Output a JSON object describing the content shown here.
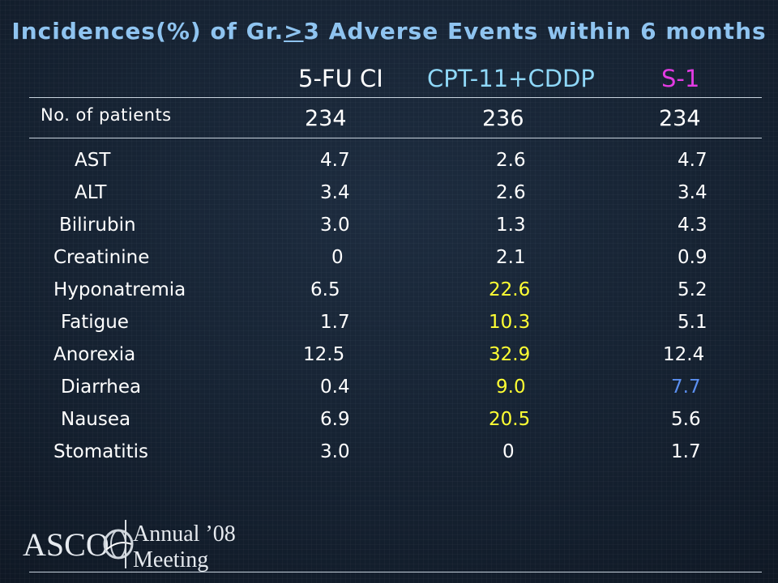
{
  "slide": {
    "title_pre": "Incidences(%) of Gr.",
    "title_ge": ">",
    "title_post": "3 Adverse Events within 6 months",
    "columns": [
      {
        "label": "5-FU CI",
        "color": "#ffffff"
      },
      {
        "label": "CPT-11+CDDP",
        "color": "#8fd8f8"
      },
      {
        "label": "S-1",
        "color": "#e23be2"
      }
    ],
    "patients_label": "No. of patients",
    "patients": [
      "234",
      "236",
      "234"
    ],
    "highlight_yellow": "#ffff33",
    "highlight_blue": "#5b8ff0",
    "rows": [
      {
        "name": "AST",
        "v1": "4.7",
        "v2": "2.6",
        "v3": "4.7"
      },
      {
        "name": "ALT",
        "v1": "3.4",
        "v2": "2.6",
        "v3": "3.4"
      },
      {
        "name": "Bilirubin",
        "v1": "3.0",
        "v2": "1.3",
        "v3": "4.3"
      },
      {
        "name": "Creatinine",
        "v1": "0",
        "v2": "2.1",
        "v3": "0.9"
      },
      {
        "name": "Hyponatremia",
        "v1": "6.5",
        "v2": "22.6",
        "v3": "5.2"
      },
      {
        "name": "Fatigue",
        "v1": "1.7",
        "v2": "10.3",
        "v3": "5.1"
      },
      {
        "name": "Anorexia",
        "v1": "12.5",
        "v2": "32.9",
        "v3": "12.4"
      },
      {
        "name": "Diarrhea",
        "v1": "0.4",
        "v2": "9.0",
        "v3": "7.7"
      },
      {
        "name": "Nausea",
        "v1": "6.9",
        "v2": "20.5",
        "v3": "5.6"
      },
      {
        "name": "Stomatitis",
        "v1": "3.0",
        "v2": "0",
        "v3": "1.7"
      }
    ]
  },
  "logo": {
    "wordmark": "ASCO",
    "line1": "Annual ’08",
    "line2": "Meeting"
  }
}
